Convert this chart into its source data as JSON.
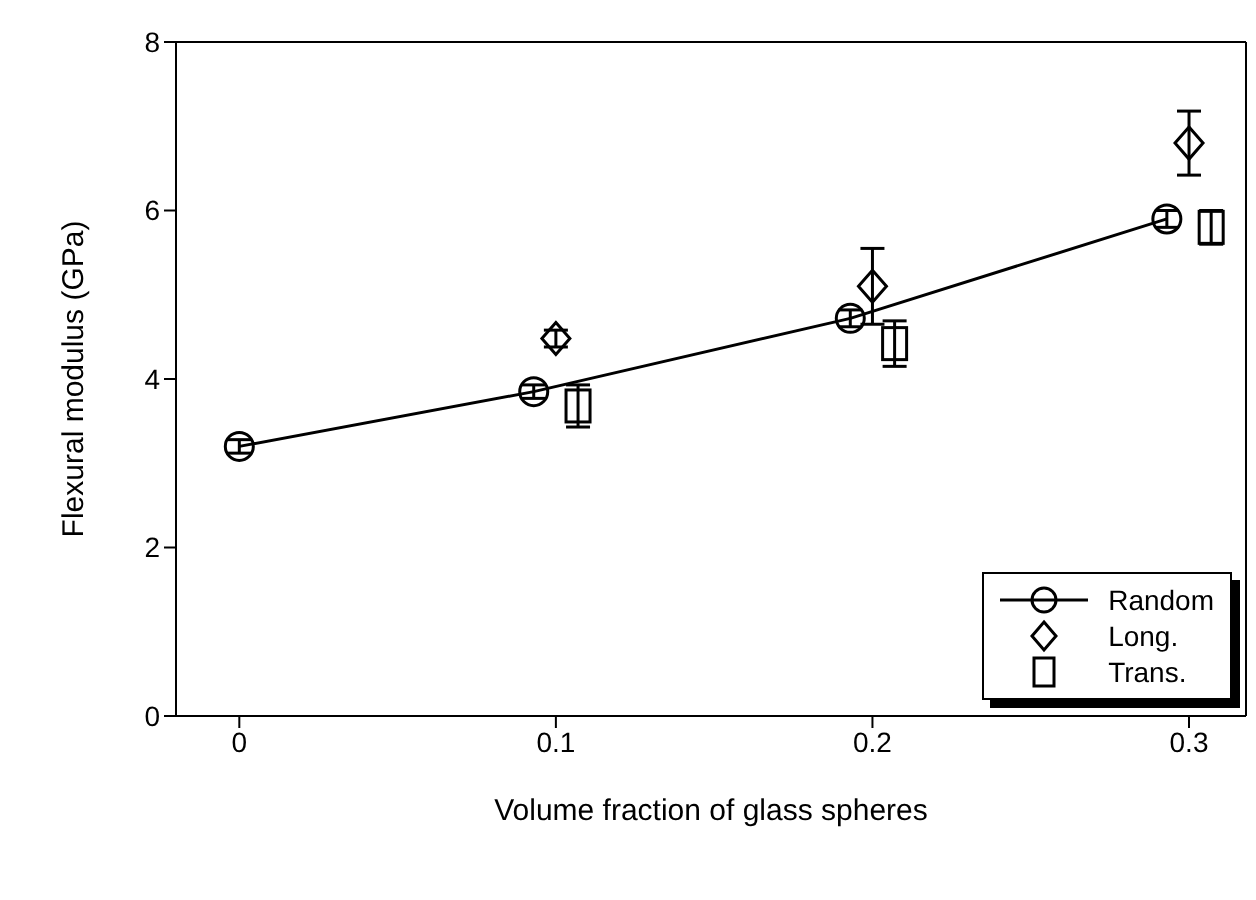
{
  "chart_data": {
    "type": "scatter",
    "xlabel": "Volume fraction of glass spheres",
    "ylabel": "Flexural modulus (GPa)",
    "xlim": [
      -0.02,
      0.318
    ],
    "xticks": [
      0,
      0.1,
      0.2,
      0.3
    ],
    "ylim": [
      0,
      8
    ],
    "yticks": [
      0,
      2,
      4,
      6,
      8
    ],
    "legend": "bottom right",
    "series": [
      {
        "name": "Random",
        "type": "line",
        "marker": "circle",
        "color": "#000000",
        "x": [
          0,
          0.093,
          0.193,
          0.293
        ],
        "values": [
          3.2,
          3.85,
          4.72,
          5.9
        ],
        "errors": [
          0.08,
          0.08,
          0.1,
          0.1
        ]
      },
      {
        "name": "Long.",
        "marker": "diamond",
        "color": "#000000",
        "x": [
          0.1,
          0.2,
          0.3
        ],
        "values": [
          4.48,
          5.1,
          6.8
        ],
        "errors": [
          0.1,
          0.45,
          0.38
        ]
      },
      {
        "name": "Trans.",
        "marker": "square",
        "color": "#000000",
        "x": [
          0.107,
          0.207,
          0.307
        ],
        "values": [
          3.68,
          4.42,
          5.8
        ],
        "errors": [
          0.25,
          0.27,
          0.2
        ]
      }
    ]
  }
}
